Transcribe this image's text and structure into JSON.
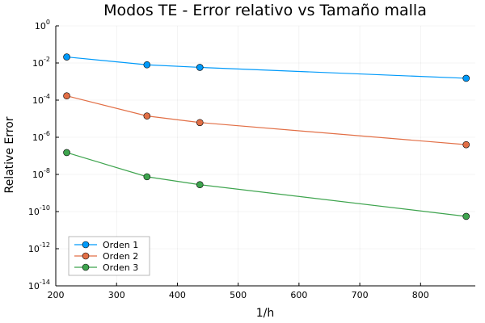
{
  "chart_data": {
    "type": "line",
    "title": "Modos TE - Error relativo vs Tamaño malla",
    "xlabel": "1/h",
    "ylabel": "Relative Error",
    "xlim": [
      200,
      890
    ],
    "ylim_log10": [
      -14,
      0
    ],
    "yscale": "log",
    "x_ticks": [
      200,
      300,
      400,
      500,
      600,
      700,
      800
    ],
    "y_tick_exponents": [
      -14,
      -12,
      -10,
      -8,
      -6,
      -4,
      -2,
      0
    ],
    "y_tick_base": "10",
    "grid": true,
    "legend_position": "bottom-left",
    "x": [
      218,
      350,
      437,
      875
    ],
    "series": [
      {
        "name": "Orden 1",
        "color": "#009AFA",
        "values": [
          0.021,
          0.008,
          0.0058,
          0.0015
        ]
      },
      {
        "name": "Orden 2",
        "color": "#E26F46",
        "values": [
          0.00017,
          1.4e-05,
          6.2e-06,
          4e-07
        ]
      },
      {
        "name": "Orden 3",
        "color": "#3EA44E",
        "values": [
          1.5e-07,
          7.5e-09,
          2.8e-09,
          5.5e-11
        ]
      }
    ]
  }
}
